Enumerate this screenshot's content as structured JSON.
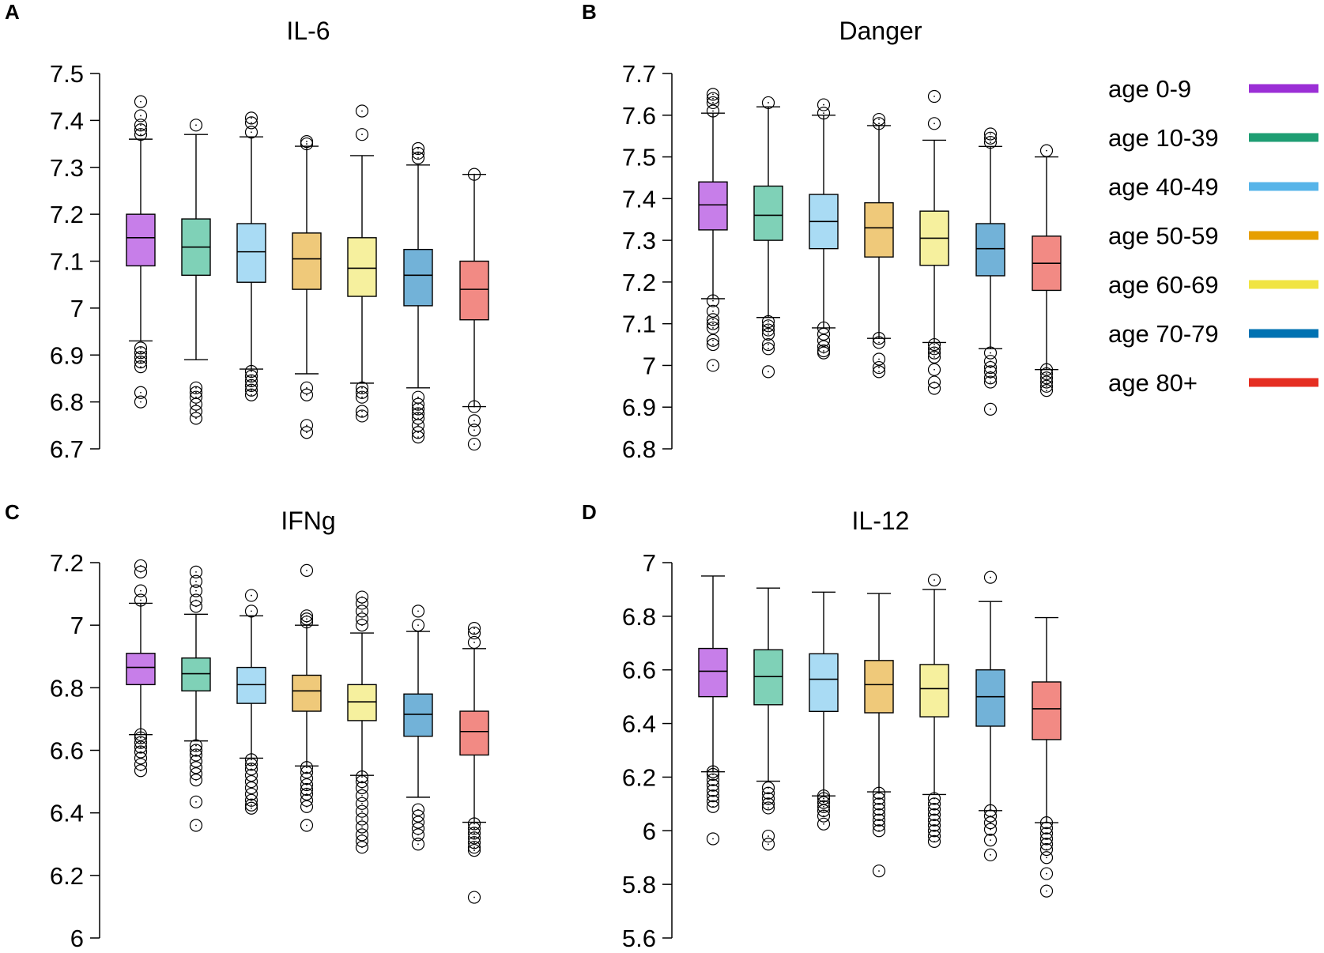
{
  "legend": [
    {
      "label": "age 0-9",
      "color": "#9b2fd6"
    },
    {
      "label": "age 10-39",
      "color": "#1f9e73"
    },
    {
      "label": "age 40-49",
      "color": "#57b4e9"
    },
    {
      "label": "age 50-59",
      "color": "#e69f00"
    },
    {
      "label": "age 60-69",
      "color": "#f0e442"
    },
    {
      "label": "age 70-79",
      "color": "#0072b2"
    },
    {
      "label": "age 80+",
      "color": "#e52e22"
    }
  ],
  "fill_colors": [
    "#c77ee9",
    "#7fd1b7",
    "#a9dbf4",
    "#efc97a",
    "#f6f09e",
    "#72b2d8",
    "#f28a84"
  ],
  "chart_data": [
    {
      "panel": "A",
      "type": "box",
      "title": "IL-6",
      "xlabel": "",
      "ylabel": "",
      "ylim": [
        6.7,
        7.5
      ],
      "yticks": [
        {
          "v": 6.7,
          "t": "6.7"
        },
        {
          "v": 6.8,
          "t": "6.8"
        },
        {
          "v": 6.9,
          "t": "6.9"
        },
        {
          "v": 7,
          "t": "7"
        },
        {
          "v": 7.1,
          "t": "7.1"
        },
        {
          "v": 7.2,
          "t": "7.2"
        },
        {
          "v": 7.3,
          "t": "7.3"
        },
        {
          "v": 7.4,
          "t": "7.4"
        },
        {
          "v": 7.5,
          "t": "7.5"
        }
      ],
      "categories": [
        "age 0-9",
        "age 10-39",
        "age 40-49",
        "age 50-59",
        "age 60-69",
        "age 70-79",
        "age 80+"
      ],
      "boxes": [
        {
          "low": 6.93,
          "q1": 7.09,
          "median": 7.15,
          "q3": 7.2,
          "high": 7.36,
          "outliers": [
            6.8,
            6.82,
            6.875,
            6.885,
            6.895,
            6.905,
            6.915,
            7.37,
            7.38,
            7.39,
            7.41,
            7.44
          ]
        },
        {
          "low": 6.89,
          "q1": 7.07,
          "median": 7.13,
          "q3": 7.19,
          "high": 7.37,
          "outliers": [
            6.765,
            6.78,
            6.795,
            6.81,
            6.82,
            6.83,
            7.39
          ]
        },
        {
          "low": 6.87,
          "q1": 7.055,
          "median": 7.12,
          "q3": 7.18,
          "high": 7.365,
          "outliers": [
            6.815,
            6.825,
            6.835,
            6.845,
            6.855,
            6.865,
            7.375,
            7.395,
            7.405
          ]
        },
        {
          "low": 6.86,
          "q1": 7.04,
          "median": 7.105,
          "q3": 7.16,
          "high": 7.345,
          "outliers": [
            6.735,
            6.75,
            6.815,
            6.83,
            7.35,
            7.355
          ]
        },
        {
          "low": 6.84,
          "q1": 7.025,
          "median": 7.085,
          "q3": 7.15,
          "high": 7.325,
          "outliers": [
            6.77,
            6.78,
            6.81,
            6.82,
            6.83,
            7.37,
            7.42
          ]
        },
        {
          "low": 6.83,
          "q1": 7.005,
          "median": 7.07,
          "q3": 7.125,
          "high": 7.305,
          "outliers": [
            6.725,
            6.735,
            6.75,
            6.765,
            6.775,
            6.785,
            6.795,
            6.81,
            7.32,
            7.33,
            7.34
          ]
        },
        {
          "low": 6.79,
          "q1": 6.975,
          "median": 7.04,
          "q3": 7.1,
          "high": 7.285,
          "outliers": [
            6.71,
            6.74,
            6.76,
            6.79,
            7.285
          ]
        }
      ]
    },
    {
      "panel": "B",
      "type": "box",
      "title": "Danger",
      "xlabel": "",
      "ylabel": "",
      "ylim": [
        6.8,
        7.7
      ],
      "yticks": [
        {
          "v": 6.8,
          "t": "6.8"
        },
        {
          "v": 6.9,
          "t": "6.9"
        },
        {
          "v": 7,
          "t": "7"
        },
        {
          "v": 7.1,
          "t": "7.1"
        },
        {
          "v": 7.2,
          "t": "7.2"
        },
        {
          "v": 7.3,
          "t": "7.3"
        },
        {
          "v": 7.4,
          "t": "7.4"
        },
        {
          "v": 7.5,
          "t": "7.5"
        },
        {
          "v": 7.6,
          "t": "7.6"
        },
        {
          "v": 7.7,
          "t": "7.7"
        }
      ],
      "categories": [
        "age 0-9",
        "age 10-39",
        "age 40-49",
        "age 50-59",
        "age 60-69",
        "age 70-79",
        "age 80+"
      ],
      "boxes": [
        {
          "low": 7.16,
          "q1": 7.325,
          "median": 7.385,
          "q3": 7.44,
          "high": 7.605,
          "outliers": [
            7.0,
            7.05,
            7.06,
            7.09,
            7.1,
            7.11,
            7.13,
            7.155,
            7.61,
            7.63,
            7.64,
            7.65
          ]
        },
        {
          "low": 7.115,
          "q1": 7.3,
          "median": 7.36,
          "q3": 7.43,
          "high": 7.62,
          "outliers": [
            6.985,
            7.04,
            7.05,
            7.075,
            7.085,
            7.095,
            7.105,
            7.63
          ]
        },
        {
          "low": 7.09,
          "q1": 7.28,
          "median": 7.345,
          "q3": 7.41,
          "high": 7.6,
          "outliers": [
            7.03,
            7.035,
            7.045,
            7.06,
            7.075,
            7.09,
            7.605,
            7.625
          ]
        },
        {
          "low": 7.065,
          "q1": 7.26,
          "median": 7.33,
          "q3": 7.39,
          "high": 7.575,
          "outliers": [
            6.985,
            6.995,
            7.015,
            7.055,
            7.065,
            7.58,
            7.59
          ]
        },
        {
          "low": 7.055,
          "q1": 7.24,
          "median": 7.305,
          "q3": 7.37,
          "high": 7.54,
          "outliers": [
            6.945,
            6.96,
            6.99,
            7.02,
            7.03,
            7.04,
            7.05,
            7.58,
            7.645
          ]
        },
        {
          "low": 7.04,
          "q1": 7.215,
          "median": 7.28,
          "q3": 7.34,
          "high": 7.525,
          "outliers": [
            6.895,
            6.96,
            6.97,
            6.985,
            6.995,
            7.01,
            7.03,
            7.535,
            7.545,
            7.555
          ]
        },
        {
          "low": 6.99,
          "q1": 7.18,
          "median": 7.245,
          "q3": 7.31,
          "high": 7.5,
          "outliers": [
            6.94,
            6.95,
            6.96,
            6.97,
            6.98,
            6.99,
            7.515
          ]
        }
      ]
    },
    {
      "panel": "C",
      "type": "box",
      "title": "IFNg",
      "xlabel": "",
      "ylabel": "",
      "ylim": [
        6,
        7.2
      ],
      "yticks": [
        {
          "v": 6,
          "t": "6"
        },
        {
          "v": 6.2,
          "t": "6.2"
        },
        {
          "v": 6.4,
          "t": "6.4"
        },
        {
          "v": 6.6,
          "t": "6.6"
        },
        {
          "v": 6.8,
          "t": "6.8"
        },
        {
          "v": 7,
          "t": "7"
        },
        {
          "v": 7.2,
          "t": "7.2"
        }
      ],
      "categories": [
        "age 0-9",
        "age 10-39",
        "age 40-49",
        "age 50-59",
        "age 60-69",
        "age 70-79",
        "age 80+"
      ],
      "boxes": [
        {
          "low": 6.65,
          "q1": 6.81,
          "median": 6.865,
          "q3": 6.91,
          "high": 7.07,
          "outliers": [
            6.535,
            6.555,
            6.575,
            6.595,
            6.61,
            6.625,
            6.64,
            6.65,
            7.08,
            7.11,
            7.17,
            7.19
          ]
        },
        {
          "low": 6.63,
          "q1": 6.79,
          "median": 6.845,
          "q3": 6.895,
          "high": 7.035,
          "outliers": [
            6.36,
            6.435,
            6.505,
            6.525,
            6.545,
            6.565,
            6.585,
            6.6,
            6.615,
            7.06,
            7.08,
            7.11,
            7.14,
            7.17
          ]
        },
        {
          "low": 6.575,
          "q1": 6.75,
          "median": 6.81,
          "q3": 6.865,
          "high": 7.03,
          "outliers": [
            6.415,
            6.425,
            6.44,
            6.46,
            6.48,
            6.5,
            6.52,
            6.54,
            6.555,
            6.57,
            7.045,
            7.095
          ]
        },
        {
          "low": 6.55,
          "q1": 6.725,
          "median": 6.79,
          "q3": 6.84,
          "high": 7.0,
          "outliers": [
            6.36,
            6.42,
            6.44,
            6.46,
            6.475,
            6.49,
            6.51,
            6.53,
            6.545,
            7.01,
            7.02,
            7.03,
            7.175
          ]
        },
        {
          "low": 6.52,
          "q1": 6.695,
          "median": 6.755,
          "q3": 6.81,
          "high": 6.975,
          "outliers": [
            6.29,
            6.31,
            6.33,
            6.355,
            6.38,
            6.405,
            6.43,
            6.455,
            6.48,
            6.5,
            6.515,
            7.0,
            7.02,
            7.045,
            7.07,
            7.09
          ]
        },
        {
          "low": 6.45,
          "q1": 6.645,
          "median": 6.715,
          "q3": 6.78,
          "high": 6.98,
          "outliers": [
            6.3,
            6.33,
            6.35,
            6.37,
            6.39,
            6.41,
            7.0,
            7.045
          ]
        },
        {
          "low": 6.37,
          "q1": 6.585,
          "median": 6.66,
          "q3": 6.725,
          "high": 6.925,
          "outliers": [
            6.13,
            6.28,
            6.29,
            6.305,
            6.32,
            6.335,
            6.35,
            6.365,
            6.945,
            6.975,
            6.99
          ]
        }
      ]
    },
    {
      "panel": "D",
      "type": "box",
      "title": "IL-12",
      "xlabel": "",
      "ylabel": "",
      "ylim": [
        5.6,
        7
      ],
      "yticks": [
        {
          "v": 5.6,
          "t": "5.6"
        },
        {
          "v": 5.8,
          "t": "5.8"
        },
        {
          "v": 6,
          "t": "6"
        },
        {
          "v": 6.2,
          "t": "6.2"
        },
        {
          "v": 6.4,
          "t": "6.4"
        },
        {
          "v": 6.6,
          "t": "6.6"
        },
        {
          "v": 6.8,
          "t": "6.8"
        },
        {
          "v": 7,
          "t": "7"
        }
      ],
      "categories": [
        "age 0-9",
        "age 10-39",
        "age 40-49",
        "age 50-59",
        "age 60-69",
        "age 70-79",
        "age 80+"
      ],
      "boxes": [
        {
          "low": 6.22,
          "q1": 6.5,
          "median": 6.595,
          "q3": 6.68,
          "high": 6.95,
          "outliers": [
            5.97,
            6.09,
            6.11,
            6.13,
            6.15,
            6.17,
            6.19,
            6.21,
            6.22
          ]
        },
        {
          "low": 6.185,
          "q1": 6.47,
          "median": 6.575,
          "q3": 6.675,
          "high": 6.905,
          "outliers": [
            5.95,
            5.98,
            6.085,
            6.1,
            6.12,
            6.14,
            6.16
          ]
        },
        {
          "low": 6.13,
          "q1": 6.445,
          "median": 6.565,
          "q3": 6.66,
          "high": 6.89,
          "outliers": [
            6.025,
            6.055,
            6.075,
            6.09,
            6.105,
            6.12,
            6.13
          ]
        },
        {
          "low": 6.145,
          "q1": 6.44,
          "median": 6.545,
          "q3": 6.635,
          "high": 6.885,
          "outliers": [
            5.85,
            6.0,
            6.02,
            6.04,
            6.06,
            6.08,
            6.1,
            6.12,
            6.14
          ]
        },
        {
          "low": 6.135,
          "q1": 6.425,
          "median": 6.53,
          "q3": 6.62,
          "high": 6.9,
          "outliers": [
            5.96,
            5.98,
            6.0,
            6.02,
            6.04,
            6.06,
            6.08,
            6.1,
            6.12,
            6.935
          ]
        },
        {
          "low": 6.075,
          "q1": 6.39,
          "median": 6.5,
          "q3": 6.6,
          "high": 6.855,
          "outliers": [
            5.91,
            5.965,
            6.005,
            6.03,
            6.055,
            6.075,
            6.945
          ]
        },
        {
          "low": 6.03,
          "q1": 6.34,
          "median": 6.455,
          "q3": 6.555,
          "high": 6.795,
          "outliers": [
            5.775,
            5.84,
            5.9,
            5.93,
            5.95,
            5.97,
            5.99,
            6.01,
            6.03
          ]
        }
      ]
    }
  ]
}
